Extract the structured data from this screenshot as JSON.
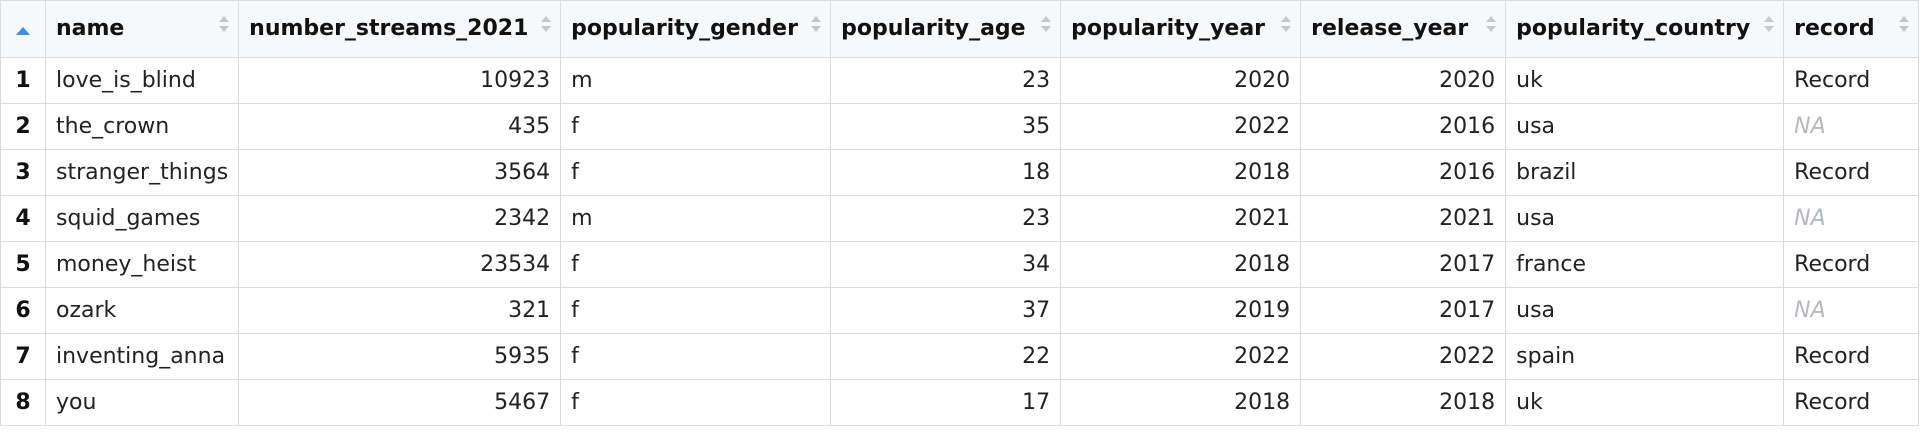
{
  "table": {
    "columns": [
      {
        "label": "name",
        "align": "left"
      },
      {
        "label": "number_streams_2021",
        "align": "right"
      },
      {
        "label": "popularity_gender",
        "align": "left"
      },
      {
        "label": "popularity_age",
        "align": "right"
      },
      {
        "label": "popularity_year",
        "align": "right"
      },
      {
        "label": "release_year",
        "align": "right"
      },
      {
        "label": "popularity_country",
        "align": "left"
      },
      {
        "label": "record",
        "align": "left"
      }
    ],
    "rows": [
      {
        "index": "1",
        "cells": [
          "love_is_blind",
          "10923",
          "m",
          "23",
          "2020",
          "2020",
          "uk",
          "Record"
        ]
      },
      {
        "index": "2",
        "cells": [
          "the_crown",
          "435",
          "f",
          "35",
          "2022",
          "2016",
          "usa",
          "NA"
        ]
      },
      {
        "index": "3",
        "cells": [
          "stranger_things",
          "3564",
          "f",
          "18",
          "2018",
          "2016",
          "brazil",
          "Record"
        ]
      },
      {
        "index": "4",
        "cells": [
          "squid_games",
          "2342",
          "m",
          "23",
          "2021",
          "2021",
          "usa",
          "NA"
        ]
      },
      {
        "index": "5",
        "cells": [
          "money_heist",
          "23534",
          "f",
          "34",
          "2018",
          "2017",
          "france",
          "Record"
        ]
      },
      {
        "index": "6",
        "cells": [
          "ozark",
          "321",
          "f",
          "37",
          "2019",
          "2017",
          "usa",
          "NA"
        ]
      },
      {
        "index": "7",
        "cells": [
          "inventing_anna",
          "5935",
          "f",
          "22",
          "2022",
          "2022",
          "spain",
          "Record"
        ]
      },
      {
        "index": "8",
        "cells": [
          "you",
          "5467",
          "f",
          "17",
          "2018",
          "2018",
          "uk",
          "Record"
        ]
      }
    ],
    "na_label": "NA"
  },
  "icons": {
    "corner": "sort-ascending-icon",
    "column_sort": "sort-toggle-icon"
  },
  "colors": {
    "header_bg": "#f6f8f9",
    "grid_line": "#d9dde1",
    "sort_accent": "#3d8ee6",
    "na_text": "#b5b9bd"
  }
}
